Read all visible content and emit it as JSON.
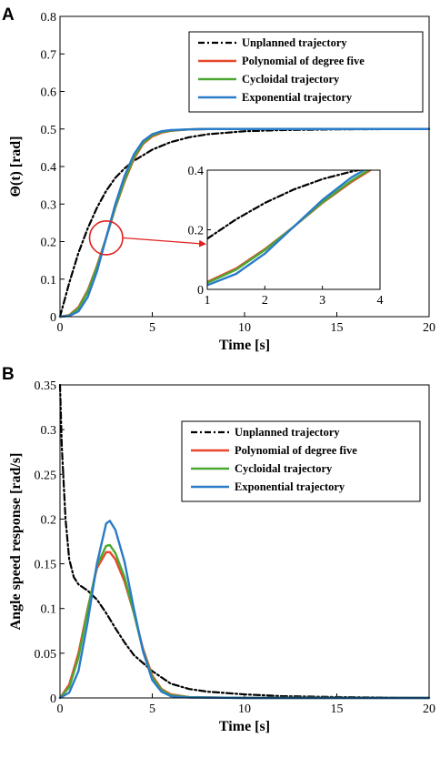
{
  "panels": [
    {
      "panel_label": "A",
      "chart_data": {
        "type": "line",
        "xlabel": "Time [s]",
        "ylabel": "Θ(t) [rad]",
        "xlim": [
          0,
          20
        ],
        "ylim": [
          0,
          0.8
        ],
        "xticks": [
          0,
          5,
          10,
          15,
          20
        ],
        "yticks": [
          0,
          0.1,
          0.2,
          0.3,
          0.4,
          0.5,
          0.6,
          0.7,
          0.8
        ],
        "legend_position": "top-right",
        "grid": false,
        "series": [
          {
            "name": "Unplanned trajectory",
            "color": "#000000",
            "style": "dashdot",
            "x": [
              0,
              0.5,
              1,
              1.5,
              2,
              2.5,
              3,
              3.5,
              4,
              5,
              6,
              7,
              8,
              10,
              12,
              15,
              20
            ],
            "y": [
              0,
              0.09,
              0.17,
              0.235,
              0.29,
              0.335,
              0.37,
              0.395,
              0.415,
              0.445,
              0.465,
              0.478,
              0.486,
              0.494,
              0.497,
              0.499,
              0.5
            ]
          },
          {
            "name": "Polynomial of degree five",
            "color": "#e8472a",
            "style": "solid",
            "x": [
              0,
              0.5,
              1,
              1.5,
              2,
              2.5,
              3,
              3.5,
              4,
              4.5,
              5,
              5.5,
              6,
              7,
              8,
              10,
              20
            ],
            "y": [
              0,
              0.004,
              0.025,
              0.07,
              0.135,
              0.21,
              0.29,
              0.36,
              0.42,
              0.46,
              0.48,
              0.49,
              0.495,
              0.499,
              0.5,
              0.5,
              0.5
            ]
          },
          {
            "name": "Cycloidal trajectory",
            "color": "#4aa832",
            "style": "solid",
            "x": [
              0,
              0.5,
              1,
              1.5,
              2,
              2.5,
              3,
              3.5,
              4,
              4.5,
              5,
              5.5,
              6,
              7,
              8,
              10,
              20
            ],
            "y": [
              0,
              0.003,
              0.022,
              0.066,
              0.132,
              0.21,
              0.292,
              0.364,
              0.424,
              0.463,
              0.483,
              0.492,
              0.496,
              0.499,
              0.5,
              0.5,
              0.5
            ]
          },
          {
            "name": "Exponential trajectory",
            "color": "#2a7bc8",
            "style": "solid",
            "x": [
              0,
              0.5,
              1,
              1.5,
              2,
              2.5,
              3,
              3.5,
              4,
              4.5,
              5,
              5.5,
              6,
              7,
              8,
              10,
              20
            ],
            "y": [
              0,
              0.002,
              0.014,
              0.052,
              0.12,
              0.21,
              0.3,
              0.375,
              0.432,
              0.468,
              0.486,
              0.494,
              0.497,
              0.499,
              0.5,
              0.5,
              0.5
            ]
          }
        ]
      },
      "inset": {
        "xlim": [
          1,
          4
        ],
        "ylim": [
          0,
          0.4
        ],
        "xticks": [
          1,
          2,
          3,
          4
        ],
        "yticks": [
          0,
          0.2,
          0.4
        ],
        "series": [
          {
            "name": "Unplanned trajectory",
            "color": "#000000",
            "style": "dashdot",
            "x": [
              1,
              1.5,
              2,
              2.5,
              3,
              3.5,
              4
            ],
            "y": [
              0.17,
              0.235,
              0.29,
              0.335,
              0.37,
              0.395,
              0.415
            ]
          },
          {
            "name": "Polynomial of degree five",
            "color": "#e8472a",
            "style": "solid",
            "x": [
              1,
              1.5,
              2,
              2.5,
              3,
              3.5,
              4
            ],
            "y": [
              0.025,
              0.07,
              0.135,
              0.21,
              0.29,
              0.36,
              0.42
            ]
          },
          {
            "name": "Cycloidal trajectory",
            "color": "#4aa832",
            "style": "solid",
            "x": [
              1,
              1.5,
              2,
              2.5,
              3,
              3.5,
              4
            ],
            "y": [
              0.022,
              0.066,
              0.132,
              0.21,
              0.292,
              0.364,
              0.424
            ]
          },
          {
            "name": "Exponential trajectory",
            "color": "#2a7bc8",
            "style": "solid",
            "x": [
              1,
              1.5,
              2,
              2.5,
              3,
              3.5,
              4
            ],
            "y": [
              0.014,
              0.052,
              0.12,
              0.21,
              0.3,
              0.375,
              0.432
            ]
          }
        ]
      },
      "highlight": {
        "center_x": 2.5,
        "center_y": 0.21,
        "radius_x": 0.9,
        "radius_y": 0.045,
        "color": "#e02020"
      }
    },
    {
      "panel_label": "B",
      "chart_data": {
        "type": "line",
        "xlabel": "Time [s]",
        "ylabel": "Angle speed response [rad/s]",
        "xlim": [
          0,
          20
        ],
        "ylim": [
          0,
          0.35
        ],
        "xticks": [
          0,
          5,
          10,
          15,
          20
        ],
        "yticks": [
          0,
          0.05,
          0.1,
          0.15,
          0.2,
          0.25,
          0.3,
          0.35
        ],
        "legend_position": "top-right",
        "grid": false,
        "series": [
          {
            "name": "Unplanned trajectory",
            "color": "#000000",
            "style": "dashdot",
            "x": [
              0,
              0.1,
              0.3,
              0.5,
              0.75,
              1,
              1.5,
              2,
              2.5,
              3,
              3.5,
              4,
              5,
              6,
              7,
              8,
              10,
              12,
              15,
              20
            ],
            "y": [
              0.35,
              0.28,
              0.2,
              0.155,
              0.135,
              0.127,
              0.12,
              0.11,
              0.095,
              0.078,
              0.062,
              0.048,
              0.03,
              0.016,
              0.01,
              0.007,
              0.004,
              0.002,
              0.001,
              0
            ]
          },
          {
            "name": "Polynomial of degree five",
            "color": "#e8472a",
            "style": "solid",
            "x": [
              0,
              0.5,
              1,
              1.5,
              2,
              2.5,
              2.7,
              3,
              3.5,
              4,
              4.5,
              5,
              5.5,
              6,
              7,
              10,
              20
            ],
            "y": [
              0,
              0.015,
              0.05,
              0.1,
              0.145,
              0.163,
              0.163,
              0.155,
              0.13,
              0.095,
              0.055,
              0.025,
              0.01,
              0.004,
              0.001,
              0,
              0
            ]
          },
          {
            "name": "Cycloidal trajectory",
            "color": "#4aa832",
            "style": "solid",
            "x": [
              0,
              0.5,
              1,
              1.5,
              2,
              2.5,
              2.7,
              3,
              3.5,
              4,
              4.5,
              5,
              5.5,
              6,
              7,
              10,
              20
            ],
            "y": [
              0,
              0.012,
              0.045,
              0.098,
              0.148,
              0.17,
              0.171,
              0.162,
              0.135,
              0.095,
              0.053,
              0.023,
              0.009,
              0.003,
              0.001,
              0,
              0
            ]
          },
          {
            "name": "Exponential trajectory",
            "color": "#2a7bc8",
            "style": "solid",
            "x": [
              0,
              0.5,
              1,
              1.5,
              2,
              2.5,
              2.7,
              3,
              3.5,
              4,
              4.5,
              5,
              5.5,
              6,
              7,
              10,
              20
            ],
            "y": [
              0,
              0.006,
              0.03,
              0.085,
              0.15,
              0.195,
              0.198,
              0.188,
              0.152,
              0.1,
              0.052,
              0.02,
              0.007,
              0.002,
              0.0005,
              0,
              0
            ]
          }
        ]
      }
    }
  ]
}
